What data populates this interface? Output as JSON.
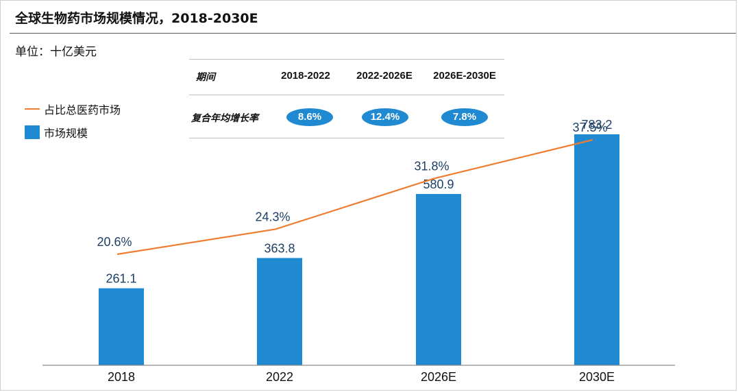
{
  "header": {
    "title": "全球生物药市场规模情况，2018-2030E",
    "unit": "单位：十亿美元"
  },
  "legend": {
    "line_label": "占比总医药市场",
    "bar_label": "市场规模"
  },
  "cagr_table": {
    "header_label": "期间",
    "row_label": "复合年均增长率",
    "periods": [
      "2018-2022",
      "2022-2026E",
      "2026E-2030E"
    ],
    "rates": [
      "8.6%",
      "12.4%",
      "7.8%"
    ]
  },
  "colors": {
    "bar": "#1f8ad2",
    "line": "#ee7d31",
    "value_text": "#1d3f66"
  },
  "chart_data": {
    "type": "bar",
    "title": "全球生物药市场规模情况，2018-2030E",
    "categories": [
      "2018",
      "2022",
      "2026E",
      "2030E"
    ],
    "series": [
      {
        "name": "市场规模",
        "type": "bar",
        "values": [
          261.1,
          363.8,
          580.9,
          783.2
        ],
        "labels": [
          "261.1",
          "363.8",
          "580.9",
          "783.2"
        ]
      },
      {
        "name": "占比总医药市场",
        "type": "line",
        "values": [
          20.6,
          24.3,
          31.8,
          37.5
        ],
        "labels": [
          "20.6%",
          "24.3%",
          "31.8%",
          "37.5%"
        ]
      }
    ],
    "ylabel": "单位：十亿美元",
    "bar_ylim": [
      0,
      1000
    ],
    "line_ylim": [
      0,
      48
    ],
    "grid": false,
    "legend_position": "left"
  }
}
